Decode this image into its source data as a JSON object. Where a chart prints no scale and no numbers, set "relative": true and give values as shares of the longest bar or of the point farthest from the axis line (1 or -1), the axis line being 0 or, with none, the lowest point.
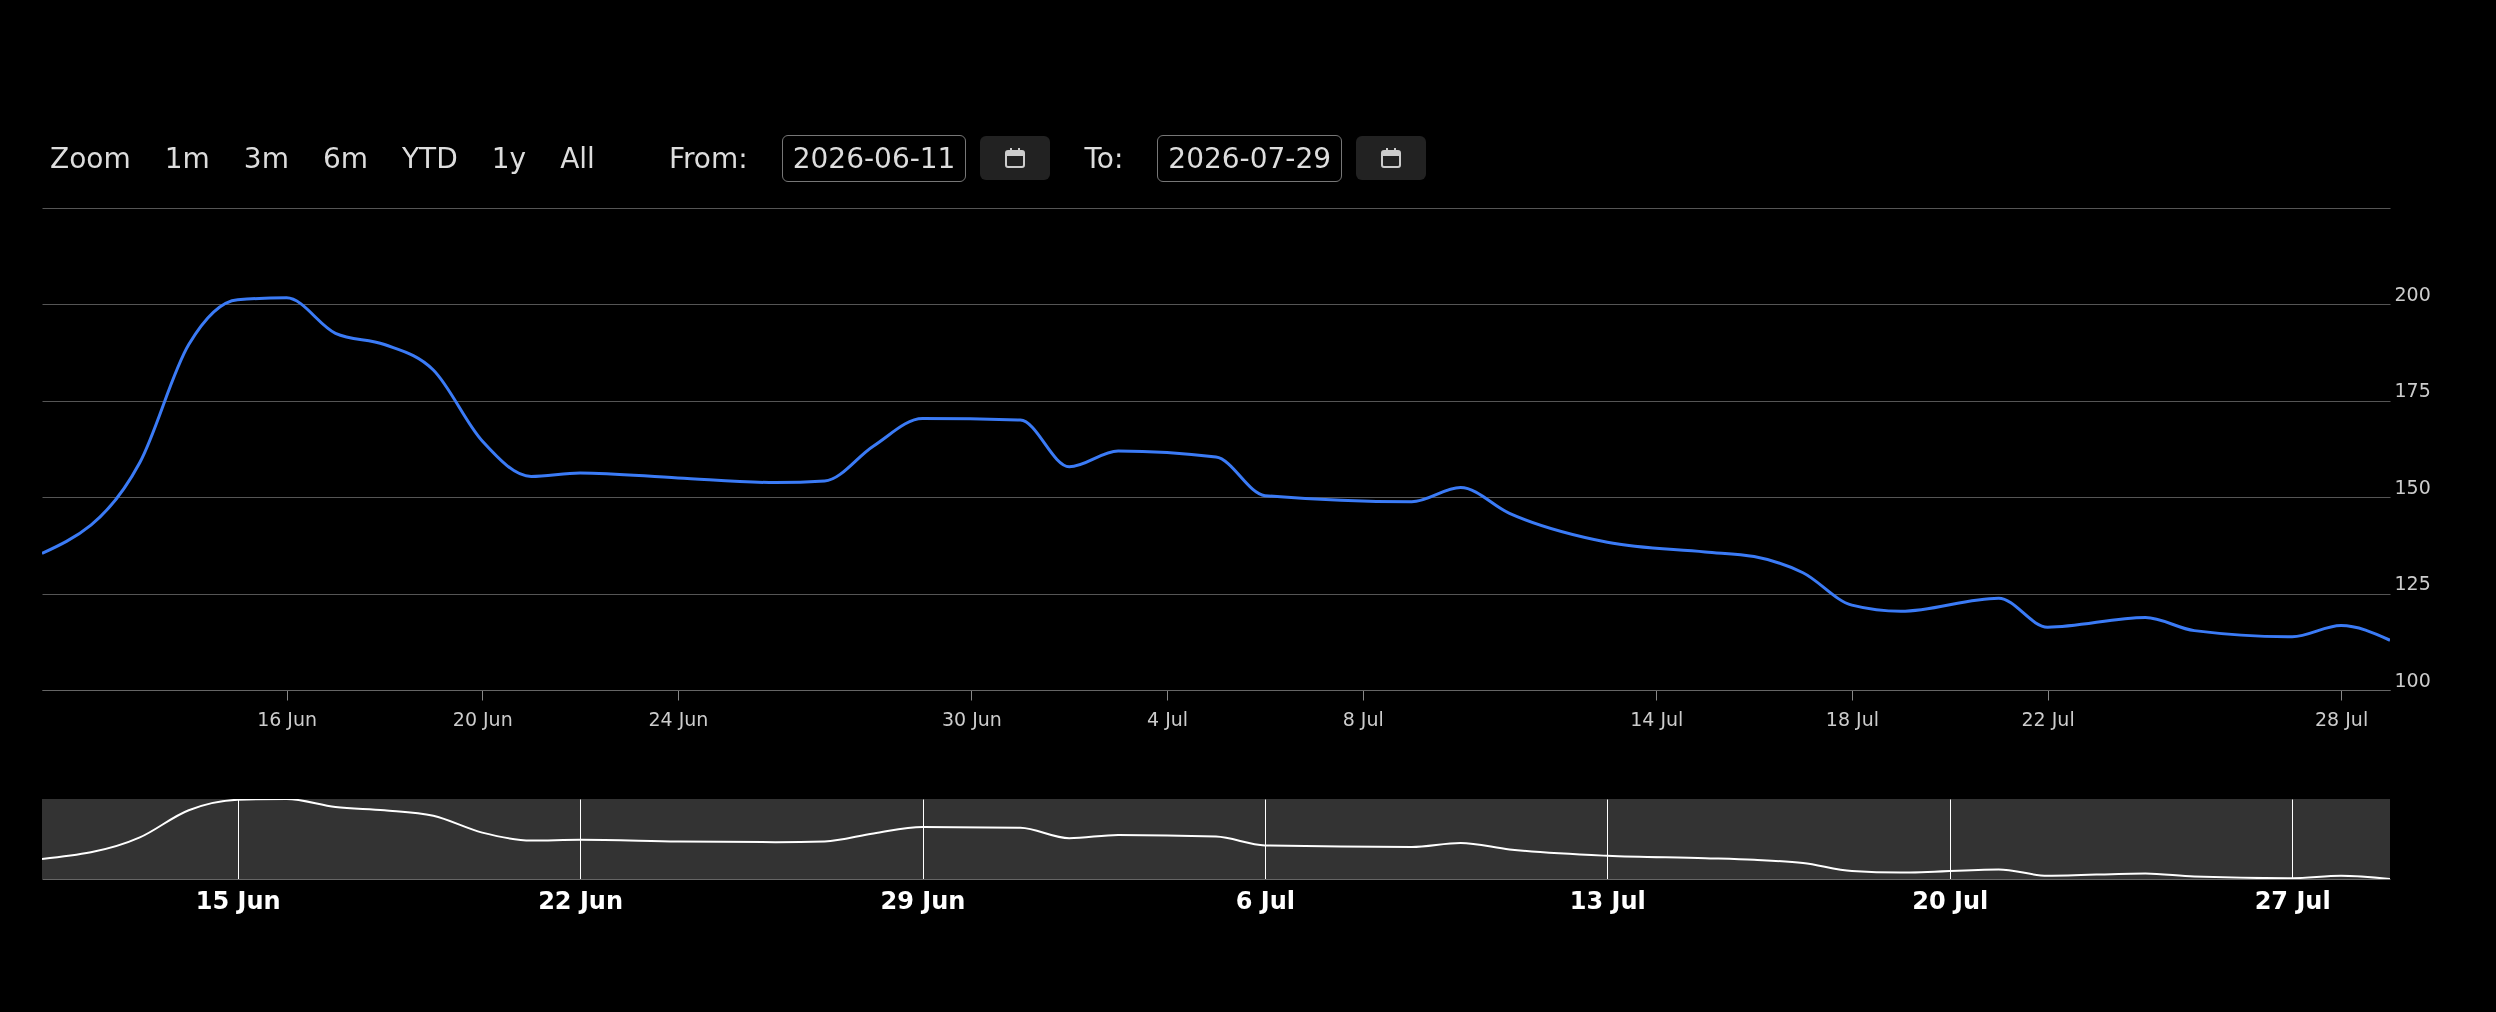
{
  "chart_data": [
    {
      "type": "line",
      "annotations": [
        "Zoom",
        "1m",
        "3m",
        "6m",
        "YTD",
        "1y",
        "All",
        "From:",
        "2026-06-11",
        "To:",
        "2026-07-29"
      ],
      "x": [
        "2026-06-11",
        "2026-06-13",
        "2026-06-14",
        "2026-06-15",
        "2026-06-16",
        "2026-06-17",
        "2026-06-18",
        "2026-06-19",
        "2026-06-20",
        "2026-06-21",
        "2026-06-22",
        "2026-06-24",
        "2026-06-26",
        "2026-06-27",
        "2026-06-28",
        "2026-06-29",
        "2026-07-01",
        "2026-07-02",
        "2026-07-03",
        "2026-07-05",
        "2026-07-06",
        "2026-07-09",
        "2026-07-10",
        "2026-07-11",
        "2026-07-13",
        "2026-07-15",
        "2026-07-16",
        "2026-07-17",
        "2026-07-18",
        "2026-07-19",
        "2026-07-21",
        "2026-07-22",
        "2026-07-24",
        "2026-07-25",
        "2026-07-27",
        "2026-07-28",
        "2026-07-29"
      ],
      "series": [
        {
          "color": "#3b7bf6",
          "values": [
            135.4,
            159,
            189.6,
            201.2,
            201.7,
            192.5,
            189.6,
            183,
            164.6,
            155.4,
            156.3,
            155,
            153.8,
            154.2,
            163.3,
            170.4,
            170,
            157.9,
            162,
            160.4,
            150.4,
            148.8,
            152.5,
            145.8,
            138.3,
            135.8,
            134.6,
            130.4,
            122,
            120.4,
            123.8,
            116.3,
            118.8,
            115.4,
            113.8,
            116.7,
            112.9
          ]
        }
      ],
      "xlim": [
        "2026-06-11",
        "2026-07-29"
      ],
      "xticks": [
        {
          "value": "2026-06-16",
          "label": "16 Jun"
        },
        {
          "value": "2026-06-20",
          "label": "20 Jun"
        },
        {
          "value": "2026-06-24",
          "label": "24 Jun"
        },
        {
          "value": "2026-06-30",
          "label": "30 Jun"
        },
        {
          "value": "2026-07-04",
          "label": "4 Jul"
        },
        {
          "value": "2026-07-08",
          "label": "8 Jul"
        },
        {
          "value": "2026-07-14",
          "label": "14 Jul"
        },
        {
          "value": "2026-07-18",
          "label": "18 Jul"
        },
        {
          "value": "2026-07-22",
          "label": "22 Jul"
        },
        {
          "value": "2026-07-28",
          "label": "28 Jul"
        }
      ],
      "ylim": [
        100,
        225
      ],
      "yticks": [
        100,
        125,
        150,
        175,
        200,
        {
          "value": 225,
          "label": null
        }
      ],
      "grid": "y"
    },
    {
      "type": "line",
      "relative": true,
      "tick_labels": "x",
      "grid": "x",
      "x": [
        "2026-06-11",
        "2026-06-13",
        "2026-06-14",
        "2026-06-15",
        "2026-06-16",
        "2026-06-17",
        "2026-06-18",
        "2026-06-19",
        "2026-06-20",
        "2026-06-21",
        "2026-06-22",
        "2026-06-24",
        "2026-06-26",
        "2026-06-27",
        "2026-06-28",
        "2026-06-29",
        "2026-07-01",
        "2026-07-02",
        "2026-07-03",
        "2026-07-05",
        "2026-07-06",
        "2026-07-09",
        "2026-07-10",
        "2026-07-11",
        "2026-07-13",
        "2026-07-15",
        "2026-07-16",
        "2026-07-17",
        "2026-07-18",
        "2026-07-19",
        "2026-07-21",
        "2026-07-22",
        "2026-07-24",
        "2026-07-25",
        "2026-07-27",
        "2026-07-28",
        "2026-07-29"
      ],
      "series": [
        {
          "color": "#ffffff",
          "values": [
            0.25,
            0.52,
            0.86,
            0.99,
            1,
            0.9,
            0.86,
            0.79,
            0.58,
            0.48,
            0.49,
            0.47,
            0.46,
            0.47,
            0.57,
            0.65,
            0.64,
            0.51,
            0.55,
            0.53,
            0.42,
            0.4,
            0.45,
            0.37,
            0.29,
            0.26,
            0.24,
            0.2,
            0.1,
            0.08,
            0.12,
            0.04,
            0.07,
            0.03,
            0.01,
            0.04,
            0
          ]
        }
      ],
      "xlim": [
        "2026-06-11",
        "2026-07-29"
      ],
      "xticks": [
        {
          "value": "2026-06-15",
          "label": "15 Jun"
        },
        {
          "value": "2026-06-22",
          "label": "22 Jun"
        },
        {
          "value": "2026-06-29",
          "label": "29 Jun"
        },
        {
          "value": "2026-07-06",
          "label": "6 Jul"
        },
        {
          "value": "2026-07-13",
          "label": "13 Jul"
        },
        {
          "value": "2026-07-20",
          "label": "20 Jul"
        },
        {
          "value": "2026-07-27",
          "label": "27 Jul"
        }
      ]
    }
  ]
}
